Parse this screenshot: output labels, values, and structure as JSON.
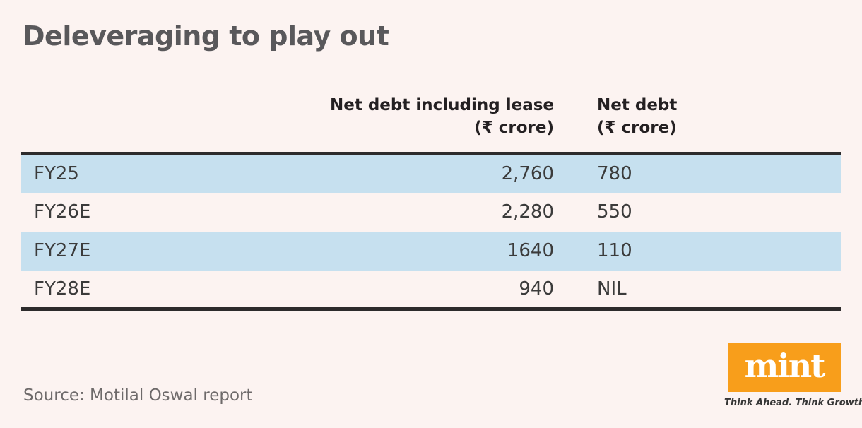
{
  "title": "Deleveraging to play out",
  "table": {
    "columns": [
      {
        "line1": "",
        "line2": ""
      },
      {
        "line1": "Net debt including lease",
        "line2": "(₹ crore)"
      },
      {
        "line1": "Net debt",
        "line2": "(₹ crore)"
      }
    ],
    "rows": [
      {
        "period": "FY25",
        "net_debt_incl_lease": "2,760",
        "net_debt": "780"
      },
      {
        "period": "FY26E",
        "net_debt_incl_lease": "2,280",
        "net_debt": "550"
      },
      {
        "period": "FY27E",
        "net_debt_incl_lease": "1640",
        "net_debt": "110"
      },
      {
        "period": "FY28E",
        "net_debt_incl_lease": "940",
        "net_debt": "NIL"
      }
    ]
  },
  "source": "Source: Motilal Oswal report",
  "branding": {
    "logo_text": "mint",
    "tagline": "Think Ahead. Think Growth."
  },
  "colors": {
    "background": "#fcf3f1",
    "row_highlight": "#c6e0ef",
    "rule": "#2d2b2c",
    "title_text": "#59585b",
    "body_text": "#3b3b3b",
    "header_text": "#242022",
    "source_text": "#6e6a6a",
    "brand_orange": "#f89e1b",
    "logo_text_color": "#ffffff"
  },
  "chart_data": {
    "type": "table",
    "title": "Deleveraging to play out",
    "columns": [
      "",
      "Net debt including lease (₹ crore)",
      "Net debt (₹ crore)"
    ],
    "rows": [
      [
        "FY25",
        "2,760",
        "780"
      ],
      [
        "FY26E",
        "2,280",
        "550"
      ],
      [
        "FY27E",
        "1640",
        "110"
      ],
      [
        "FY28E",
        "940",
        "NIL"
      ]
    ],
    "highlighted_rows": [
      "FY25",
      "FY27E"
    ],
    "source": "Source: Motilal Oswal report",
    "layout": {
      "header_alignment": [
        "left",
        "right",
        "left"
      ],
      "striped": true
    }
  }
}
